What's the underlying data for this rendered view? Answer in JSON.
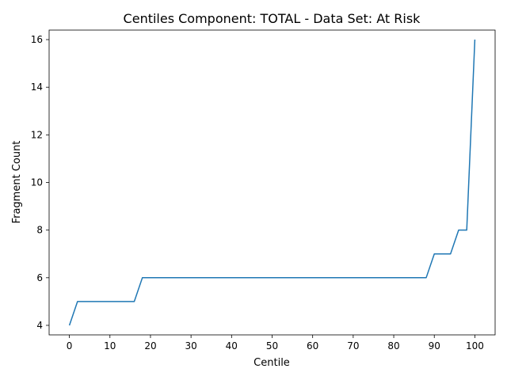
{
  "chart_data": {
    "type": "line",
    "title": "Centiles Component: TOTAL - Data Set: At Risk",
    "xlabel": "Centile",
    "ylabel": "Fragment Count",
    "xlim": [
      -5,
      105
    ],
    "ylim": [
      3.6,
      16.4
    ],
    "xticks": [
      0,
      10,
      20,
      30,
      40,
      50,
      60,
      70,
      80,
      90,
      100
    ],
    "yticks": [
      4,
      6,
      8,
      10,
      12,
      14,
      16
    ],
    "grid": false,
    "legend": "none",
    "series": [
      {
        "color": "#1f77b4",
        "x": [
          0,
          2,
          16,
          18,
          88,
          90,
          94,
          96,
          98,
          100
        ],
        "y": [
          4,
          5,
          5,
          6,
          6,
          7,
          7,
          8,
          8,
          16
        ]
      }
    ]
  }
}
